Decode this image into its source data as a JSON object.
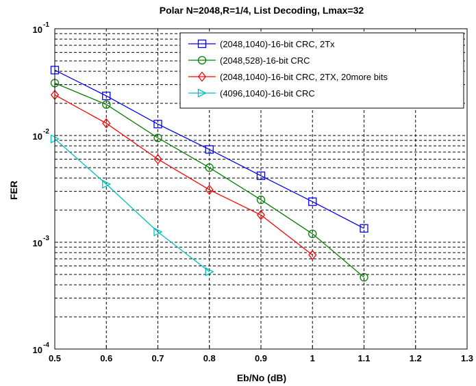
{
  "chart_data": {
    "type": "line",
    "title": "Polar N=2048,R=1/4, List Decoding, Lmax=32",
    "xlabel": "Eb/No (dB)",
    "ylabel": "FER",
    "xlim": [
      0.5,
      1.3
    ],
    "ylim": [
      0.0001,
      0.1
    ],
    "yscale": "log",
    "grid": true,
    "grid_style": "dashed",
    "legend_position": "top-right",
    "x_ticks": [
      "0.5",
      "0.6",
      "0.7",
      "0.8",
      "0.9",
      "1",
      "1.1",
      "1.2",
      "1.3"
    ],
    "y_ticks": [
      {
        "base": "10",
        "exp": "-4",
        "value": 0.0001
      },
      {
        "base": "10",
        "exp": "-3",
        "value": 0.001
      },
      {
        "base": "10",
        "exp": "-2",
        "value": 0.01
      },
      {
        "base": "10",
        "exp": "-1",
        "value": 0.1
      }
    ],
    "series": [
      {
        "name": "(2048,1040)-16-bit CRC, 2Tx",
        "color": "#0000ff",
        "marker": "square",
        "x": [
          0.5,
          0.6,
          0.7,
          0.8,
          0.9,
          1.0,
          1.1
        ],
        "y": [
          0.041,
          0.0235,
          0.0128,
          0.0074,
          0.0042,
          0.0024,
          0.00135
        ]
      },
      {
        "name": "(2048,528)-16-bit CRC",
        "color": "#008000",
        "marker": "circle",
        "x": [
          0.5,
          0.6,
          0.7,
          0.8,
          0.9,
          1.0,
          1.1
        ],
        "y": [
          0.031,
          0.0195,
          0.0095,
          0.005,
          0.0025,
          0.0012,
          0.00047
        ]
      },
      {
        "name": "(2048,1040)-16-bit CRC, 2TX, 20more bits",
        "color": "#ff0000",
        "marker": "diamond",
        "x": [
          0.5,
          0.6,
          0.7,
          0.8,
          0.9,
          1.0
        ],
        "y": [
          0.024,
          0.013,
          0.006,
          0.0031,
          0.0018,
          0.00076
        ]
      },
      {
        "name": "(4096,1040)-16-bit CRC",
        "color": "#00bfbf",
        "marker": "triangle-right",
        "x": [
          0.5,
          0.6,
          0.7,
          0.8
        ],
        "y": [
          0.0093,
          0.0035,
          0.00125,
          0.00053
        ]
      }
    ]
  }
}
